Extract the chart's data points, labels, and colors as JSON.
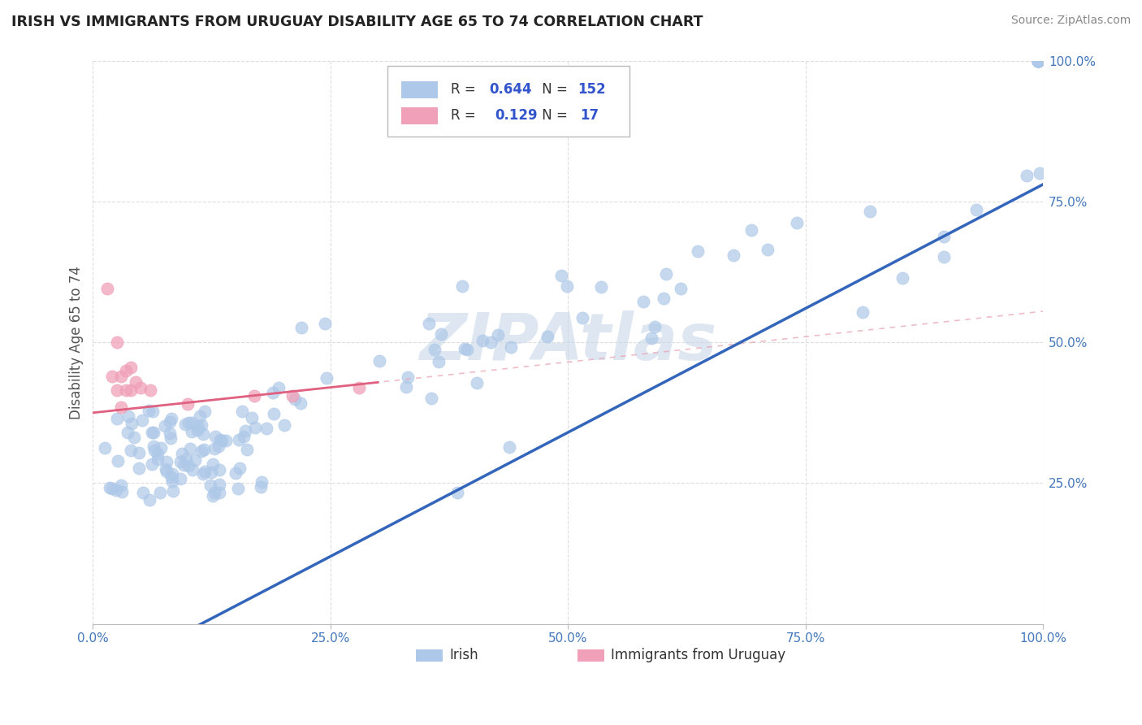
{
  "title": "IRISH VS IMMIGRANTS FROM URUGUAY DISABILITY AGE 65 TO 74 CORRELATION CHART",
  "source": "Source: ZipAtlas.com",
  "ylabel": "Disability Age 65 to 74",
  "legend_label_1": "Irish",
  "legend_label_2": "Immigrants from Uruguay",
  "r1": 0.644,
  "n1": 152,
  "r2": 0.129,
  "n2": 17,
  "color_irish": "#adc8e8",
  "color_uruguay": "#f0a0b8",
  "color_line_irish": "#3366bb",
  "color_line_uruguay": "#e06080",
  "color_dashed": "#e8a0b0",
  "x_ticks": [
    0.0,
    0.25,
    0.5,
    0.75,
    1.0
  ],
  "x_tick_labels": [
    "0.0%",
    "25.0%",
    "50.0%",
    "75.0%",
    "100.0%"
  ],
  "y_tick_labels": [
    "25.0%",
    "50.0%",
    "75.0%",
    "100.0%"
  ],
  "y_ticks": [
    0.25,
    0.5,
    0.75,
    1.0
  ],
  "watermark_color": "#c8d8e8",
  "grid_color": "#dddddd",
  "title_color": "#222222",
  "source_color": "#888888",
  "ylabel_color": "#555555"
}
